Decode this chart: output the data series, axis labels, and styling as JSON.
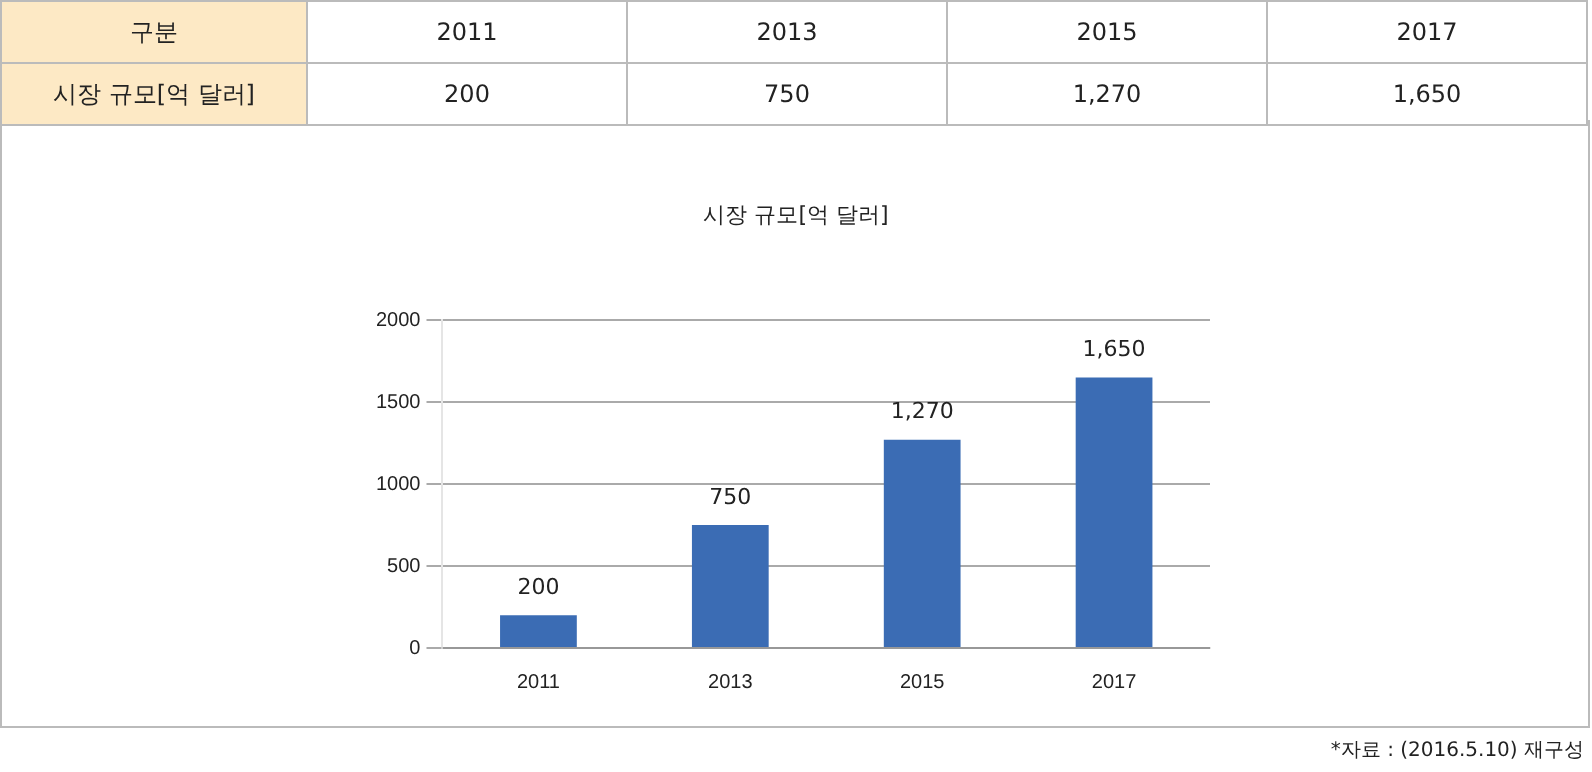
{
  "chart_data": {
    "type": "bar",
    "title": "시장 규모[억 달러]",
    "categories": [
      "2011",
      "2013",
      "2015",
      "2017"
    ],
    "values": [
      200,
      750,
      1270,
      1650
    ],
    "value_labels": [
      "200",
      "750",
      "1,270",
      "1,650"
    ],
    "color": "#3b6cb4",
    "ylim": [
      0,
      2000
    ],
    "yticks": [
      0,
      500,
      1000,
      1500,
      2000
    ],
    "grid": "y",
    "annotations": [
      "구분",
      "*자료 : (2016.5.10) 재구성"
    ]
  }
}
